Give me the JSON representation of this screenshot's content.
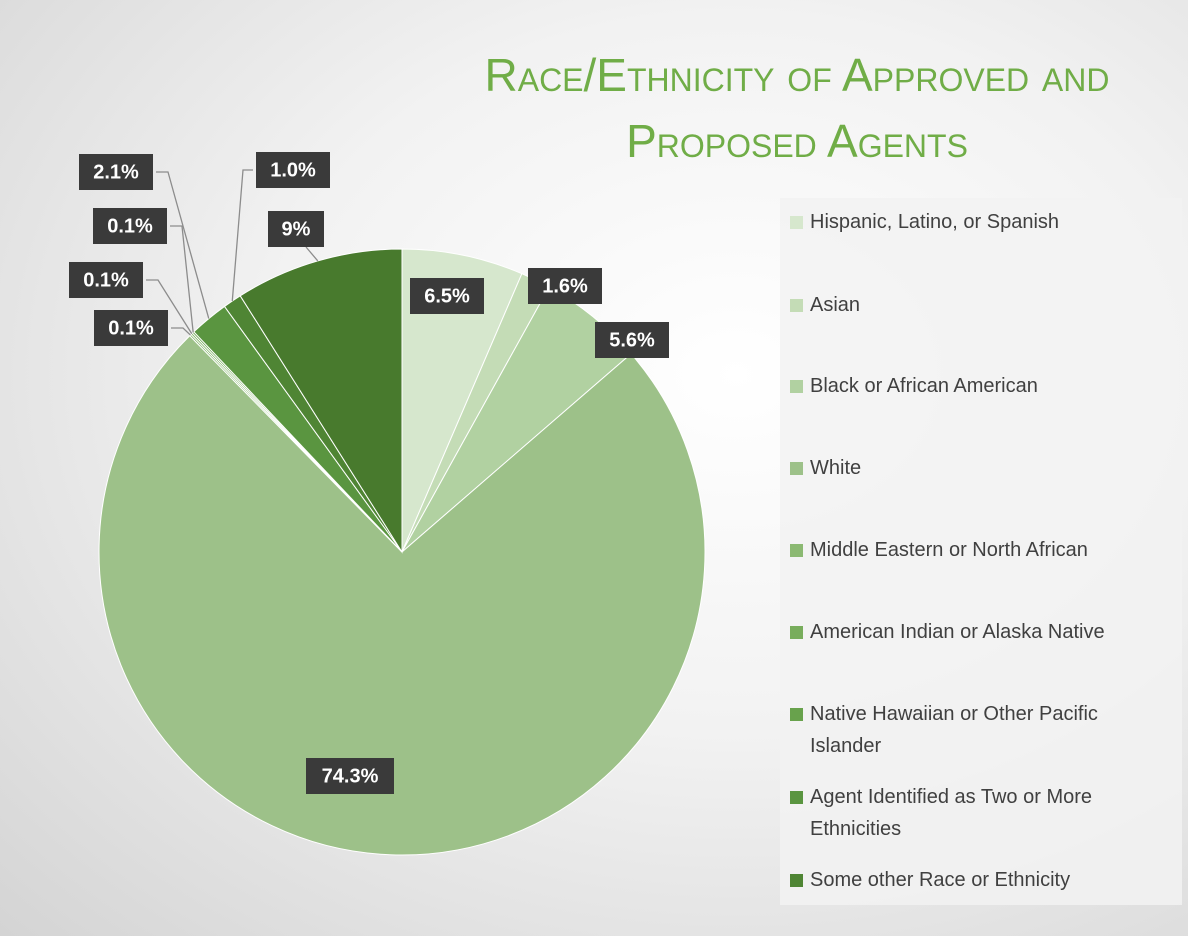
{
  "chart_data": {
    "type": "pie",
    "title": "Race/Ethnicity of Approved and Proposed Agents",
    "categories": [
      "Hispanic, Latino, or Spanish",
      "Asian",
      "Black or African American",
      "White",
      "Middle Eastern or North African",
      "American Indian or Alaska Native",
      "Native Hawaiian or Other Pacific Islander",
      "Agent Identified as Two or More Ethnicities",
      "Some other Race or Ethnicity",
      null
    ],
    "values": [
      6.5,
      1.6,
      5.6,
      74.3,
      0.1,
      0.1,
      0.1,
      2.1,
      1.0,
      9
    ],
    "value_labels": [
      "6.5%",
      "1.6%",
      "5.6%",
      "74.3%",
      "0.1%",
      "0.1%",
      "0.1%",
      "2.1%",
      "1.0%",
      "9%"
    ],
    "colors": [
      "#d6e7cd",
      "#c4dcb6",
      "#b1d1a1",
      "#9dc189",
      "#8bb972",
      "#78ad5c",
      "#68a24c",
      "#5a9540",
      "#4f8534",
      "#487a2d"
    ],
    "legend": "right"
  }
}
